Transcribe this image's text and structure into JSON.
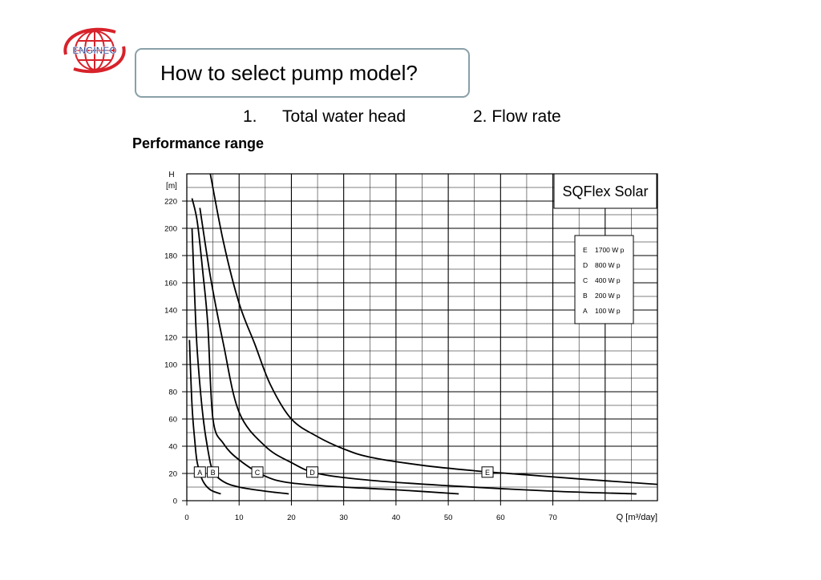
{
  "logo": {
    "text": "ENGINEO",
    "colors": {
      "globe": "#d7222a",
      "text": "#1f3a8a"
    }
  },
  "slide": {
    "title": "How to select pump model?",
    "criteria": {
      "item1_number": "1.",
      "item1_text": "Total water head",
      "item2": "2. Flow rate"
    }
  },
  "chart_heading": "Performance range",
  "chart_data": {
    "type": "line",
    "title": "SQFlex Solar",
    "xlabel": "Q [m³/day]",
    "ylabel_line1": "H",
    "ylabel_line2": "[m]",
    "xlim": [
      0,
      90
    ],
    "ylim": [
      0,
      240
    ],
    "x_ticks": [
      0,
      10,
      20,
      30,
      40,
      50,
      60,
      70
    ],
    "y_ticks": [
      0,
      20,
      40,
      60,
      80,
      100,
      120,
      140,
      160,
      180,
      200,
      220
    ],
    "grid": true,
    "legend_position": "top-right",
    "series": [
      {
        "name": "100 Wp",
        "label": "A",
        "letter_pos": [
          2.5,
          21
        ],
        "points": [
          [
            0.5,
            118
          ],
          [
            1.0,
            70
          ],
          [
            1.5,
            45
          ],
          [
            2.0,
            28
          ],
          [
            3.0,
            15
          ],
          [
            4.5,
            8
          ],
          [
            6.5,
            5
          ]
        ]
      },
      {
        "name": "200 Wp",
        "label": "B",
        "letter_pos": [
          5.0,
          21
        ],
        "points": [
          [
            1.0,
            200
          ],
          [
            1.5,
            150
          ],
          [
            2.0,
            110
          ],
          [
            3.0,
            65
          ],
          [
            4.0,
            38
          ],
          [
            5.0,
            22
          ],
          [
            7.0,
            14
          ],
          [
            10.0,
            10
          ],
          [
            15.0,
            7
          ],
          [
            19.5,
            5
          ]
        ]
      },
      {
        "name": "400 Wp",
        "label": "C",
        "letter_pos": [
          13.5,
          21
        ],
        "points": [
          [
            1.0,
            222
          ],
          [
            2.0,
            205
          ],
          [
            3.0,
            170
          ],
          [
            4.0,
            130
          ],
          [
            5.0,
            60
          ],
          [
            7.0,
            42
          ],
          [
            10.0,
            30
          ],
          [
            15.0,
            18
          ],
          [
            20.0,
            13
          ],
          [
            30.0,
            10
          ],
          [
            40.0,
            8
          ],
          [
            52.0,
            5
          ]
        ]
      },
      {
        "name": "800 Wp",
        "label": "D",
        "letter_pos": [
          24.0,
          21
        ],
        "points": [
          [
            2.5,
            215
          ],
          [
            4.5,
            165
          ],
          [
            7.0,
            115
          ],
          [
            10.0,
            65
          ],
          [
            15.0,
            40
          ],
          [
            20.0,
            28
          ],
          [
            25.0,
            20
          ],
          [
            35.0,
            15
          ],
          [
            50.0,
            11
          ],
          [
            70.0,
            7
          ],
          [
            86.0,
            5
          ]
        ]
      },
      {
        "name": "1700 Wp",
        "label": "E",
        "letter_pos": [
          57.5,
          21
        ],
        "points": [
          [
            4.5,
            240
          ],
          [
            7.0,
            190
          ],
          [
            10.0,
            145
          ],
          [
            13.0,
            115
          ],
          [
            16.0,
            85
          ],
          [
            20.0,
            60
          ],
          [
            25.0,
            47
          ],
          [
            30.0,
            38
          ],
          [
            35.0,
            32
          ],
          [
            45.0,
            26
          ],
          [
            55.0,
            22
          ],
          [
            65.0,
            19
          ],
          [
            75.0,
            16
          ],
          [
            90.0,
            12
          ]
        ]
      }
    ],
    "legend": [
      {
        "label": "E",
        "text": "1700 W p"
      },
      {
        "label": "D",
        "text": "800 W p"
      },
      {
        "label": "C",
        "text": "400 W p"
      },
      {
        "label": "B",
        "text": "200 W p"
      },
      {
        "label": "A",
        "text": "100 W p"
      }
    ]
  }
}
